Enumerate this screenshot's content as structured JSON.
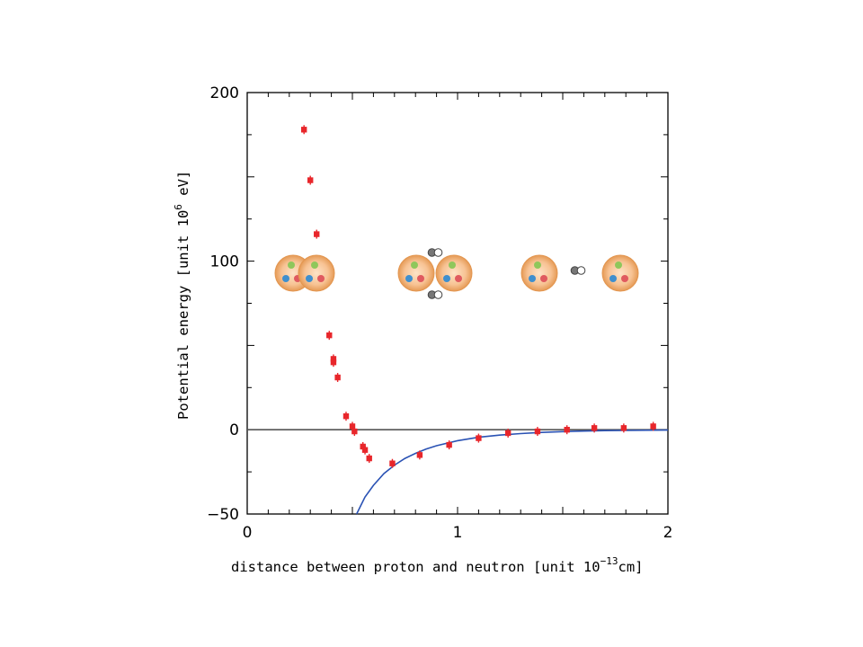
{
  "chart_data": {
    "type": "scatter",
    "title": "",
    "xlabel": {
      "text": "distance between proton and neutron [unit 10",
      "exponent": "−13",
      "unit": "cm]"
    },
    "ylabel": {
      "text": "Potential energy  [unit 10",
      "exponent": "6",
      "unit": " eV]"
    },
    "xlim": [
      0,
      2
    ],
    "ylim": [
      -50,
      200
    ],
    "x_ticks": [
      0,
      1,
      2
    ],
    "x_tick_labels": [
      "0",
      "1",
      "2"
    ],
    "y_ticks": [
      -50,
      0,
      100,
      200
    ],
    "y_tick_labels": [
      "−50",
      "0",
      "100",
      "200"
    ],
    "grid": false,
    "zero_line": true,
    "series": [
      {
        "type": "scatter",
        "color": "#e8262b",
        "x": [
          0.27,
          0.3,
          0.33,
          0.39,
          0.41,
          0.41,
          0.43,
          0.47,
          0.5,
          0.51,
          0.55,
          0.56,
          0.58,
          0.69,
          0.82,
          0.96,
          1.1,
          1.24,
          1.38,
          1.52,
          1.65,
          1.79,
          1.93
        ],
        "y": [
          178,
          148,
          116,
          56,
          42,
          40,
          31,
          8,
          2,
          -1,
          -10,
          -12,
          -17,
          -20,
          -15,
          -9,
          -5,
          -2,
          -1,
          0,
          1,
          1,
          2
        ]
      },
      {
        "type": "line",
        "color": "#2a52b4",
        "x": [
          0.52,
          0.56,
          0.6,
          0.65,
          0.7,
          0.75,
          0.8,
          0.85,
          0.9,
          1.0,
          1.1,
          1.2,
          1.3,
          1.4,
          1.5,
          1.6,
          1.7,
          1.8,
          2.0
        ],
        "y": [
          -50,
          -40,
          -33,
          -26,
          -21,
          -17,
          -14,
          -11.5,
          -9.5,
          -6.5,
          -4.5,
          -3.2,
          -2.3,
          -1.6,
          -1.1,
          -0.8,
          -0.55,
          -0.4,
          -0.2
        ]
      }
    ],
    "illustration": {
      "type": "nucleon-pairs",
      "nucleon_color": "#f2b27a",
      "quark_colors": [
        "#8fc75b",
        "#3f8fce",
        "#e05a5f"
      ],
      "pion_colors": [
        "#777777",
        "#ffffff"
      ]
    }
  }
}
